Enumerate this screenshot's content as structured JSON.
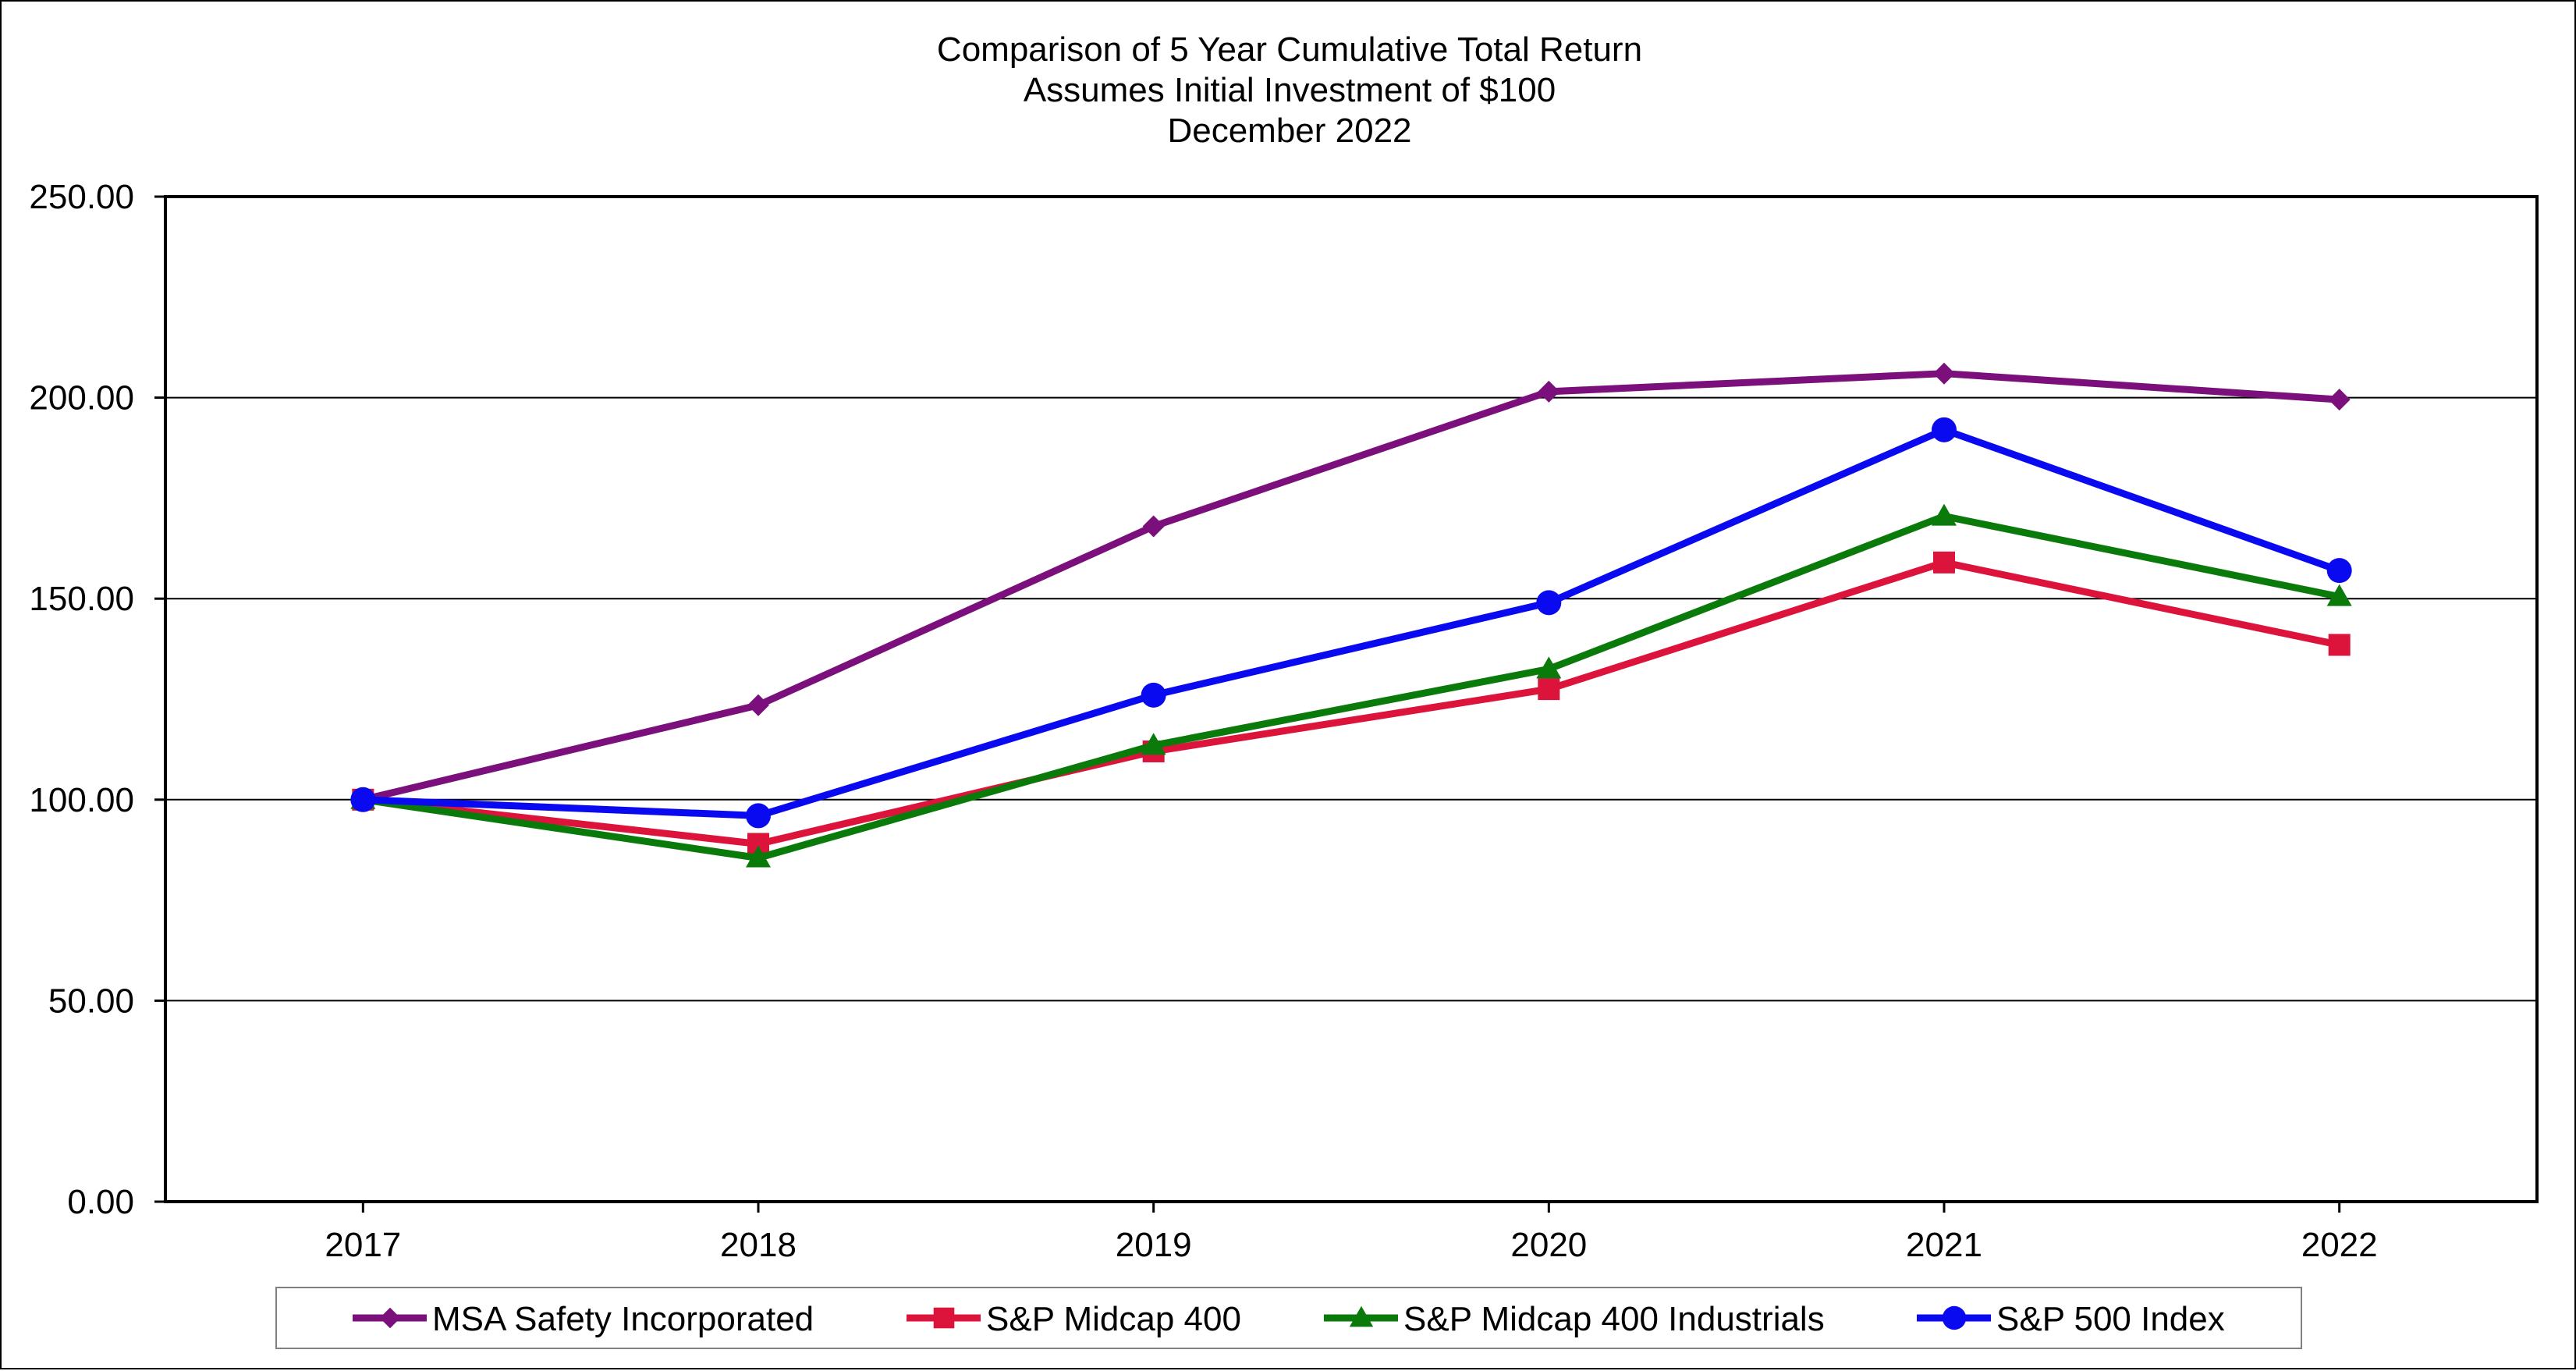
{
  "chart_data": {
    "type": "line",
    "title_lines": [
      "Comparison of 5 Year Cumulative Total Return",
      "Assumes Initial Investment of $100",
      "December 2022"
    ],
    "xlabel": "",
    "ylabel": "",
    "categories": [
      "2017",
      "2018",
      "2019",
      "2020",
      "2021",
      "2022"
    ],
    "ylim": [
      0,
      250
    ],
    "yticks": [
      0,
      50,
      100,
      150,
      200,
      250
    ],
    "ytick_labels": [
      "0.00",
      "50.00",
      "100.00",
      "150.00",
      "200.00",
      "250.00"
    ],
    "grid": "horizontal",
    "legend_position": "bottom",
    "series": [
      {
        "name": "MSA Safety Incorporated",
        "color": "#7B0F7B",
        "marker": "diamond",
        "values": [
          100.0,
          123.5,
          168.0,
          201.5,
          206.0,
          199.5
        ]
      },
      {
        "name": "S&P Midcap 400",
        "color": "#DC143C",
        "marker": "square",
        "values": [
          100.0,
          89.0,
          112.0,
          127.5,
          159.0,
          138.5
        ]
      },
      {
        "name": "S&P Midcap 400 Industrials",
        "color": "#0A7A0A",
        "marker": "triangle",
        "values": [
          100.0,
          85.5,
          113.5,
          132.5,
          170.5,
          150.5
        ]
      },
      {
        "name": "S&P 500 Index",
        "color": "#0A0AF0",
        "marker": "circle",
        "values": [
          100.0,
          96.0,
          126.0,
          149.0,
          192.0,
          157.0
        ]
      }
    ]
  }
}
